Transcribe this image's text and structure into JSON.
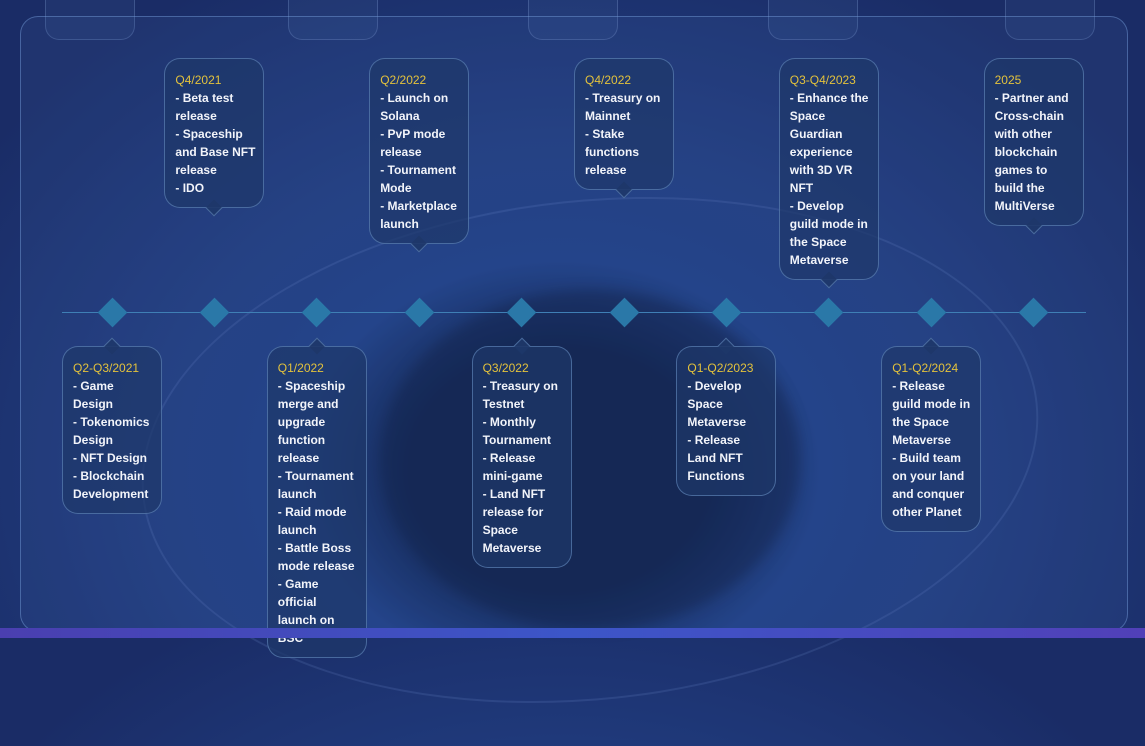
{
  "colors": {
    "date": "#e3c23c",
    "diamond": "#2a78a8",
    "text": "#f2f4fa"
  },
  "milestones": [
    {
      "date": "Q2-Q3/2021",
      "items": [
        "- Game Design",
        "- Tokenomics Design",
        "- NFT Design",
        "- Blockchain Development"
      ]
    },
    {
      "date": "Q4/2021",
      "items": [
        "- Beta test release",
        "- Spaceship and Base NFT release",
        "- IDO"
      ]
    },
    {
      "date": "Q1/2022",
      "items": [
        "- Spaceship merge and upgrade function release",
        "- Tournament launch",
        "- Raid mode launch",
        "- Battle Boss mode release",
        "- Game official launch on BSC"
      ]
    },
    {
      "date": "Q2/2022",
      "items": [
        "- Launch on Solana",
        "- PvP mode release",
        "- Tournament Mode",
        "- Marketplace launch"
      ]
    },
    {
      "date": "Q3/2022",
      "items": [
        "- Treasury on Testnet",
        "- Monthly Tournament",
        "- Release mini-game",
        "- Land NFT release for Space Metaverse"
      ]
    },
    {
      "date": "Q4/2022",
      "items": [
        "- Treasury on Mainnet",
        "- Stake functions release"
      ]
    },
    {
      "date": "Q1-Q2/2023",
      "items": [
        "- Develop Space Metaverse",
        "- Release Land NFT Functions"
      ]
    },
    {
      "date": "Q3-Q4/2023",
      "items": [
        "- Enhance the Space Guardian experience with 3D VR NFT",
        "- Develop guild mode in the Space Metaverse"
      ]
    },
    {
      "date": "Q1-Q2/2024",
      "items": [
        "- Release guild mode in the Space Metaverse",
        "- Build team on your land and conquer other Planet"
      ]
    },
    {
      "date": "2025",
      "items": [
        "- Partner and Cross-chain with other blockchain games to build the MultiVerse"
      ]
    }
  ]
}
